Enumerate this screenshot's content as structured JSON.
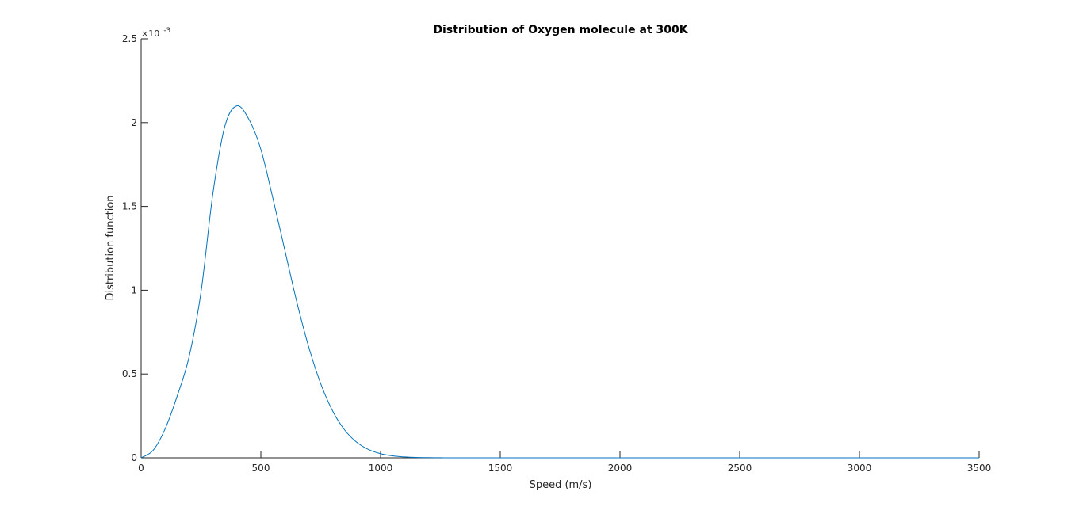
{
  "chart_data": {
    "type": "line",
    "title": "Distribution of Oxygen molecule at 300K",
    "xlabel": "Speed (m/s)",
    "ylabel": "Distribution function",
    "xlim": [
      0,
      3500
    ],
    "ylim": [
      0,
      0.0025
    ],
    "xticks": [
      0,
      500,
      1000,
      1500,
      2000,
      2500,
      3000,
      3500
    ],
    "xtick_labels": [
      "0",
      "500",
      "1000",
      "1500",
      "2000",
      "2500",
      "3000",
      "3500"
    ],
    "yticks": [
      0,
      0.0005,
      0.001,
      0.0015,
      0.002,
      0.0025
    ],
    "ytick_labels": [
      "0",
      "0.5",
      "1",
      "1.5",
      "2",
      "2.5"
    ],
    "y_exponent": {
      "base": "×10",
      "power": "-3"
    },
    "grid": false,
    "legend": "none",
    "series": [
      {
        "color": "#0072bd",
        "x": [
          0,
          50,
          100,
          150,
          200,
          250,
          300,
          350,
          400,
          450,
          500,
          550,
          600,
          650,
          700,
          750,
          800,
          850,
          900,
          950,
          1000,
          1050,
          1100,
          1150,
          1200,
          1250,
          1300,
          1400,
          1500,
          1700,
          2000,
          2500,
          3000,
          3500
        ],
        "y": [
          0,
          4.45e-05,
          0.000172,
          0.000366,
          0.000601,
          0.000988,
          0.00158,
          0.00198,
          0.0021,
          0.00202,
          0.00184,
          0.00155,
          0.00124,
          0.000931,
          0.000661,
          0.000442,
          0.000279,
          0.000166,
          9.33e-05,
          4.95e-05,
          2.48e-05,
          1.17e-05,
          5.2e-06,
          2.2e-06,
          8.8e-07,
          3.3e-07,
          1.2e-07,
          1e-08,
          0,
          0,
          0,
          0,
          0,
          0
        ]
      }
    ]
  }
}
